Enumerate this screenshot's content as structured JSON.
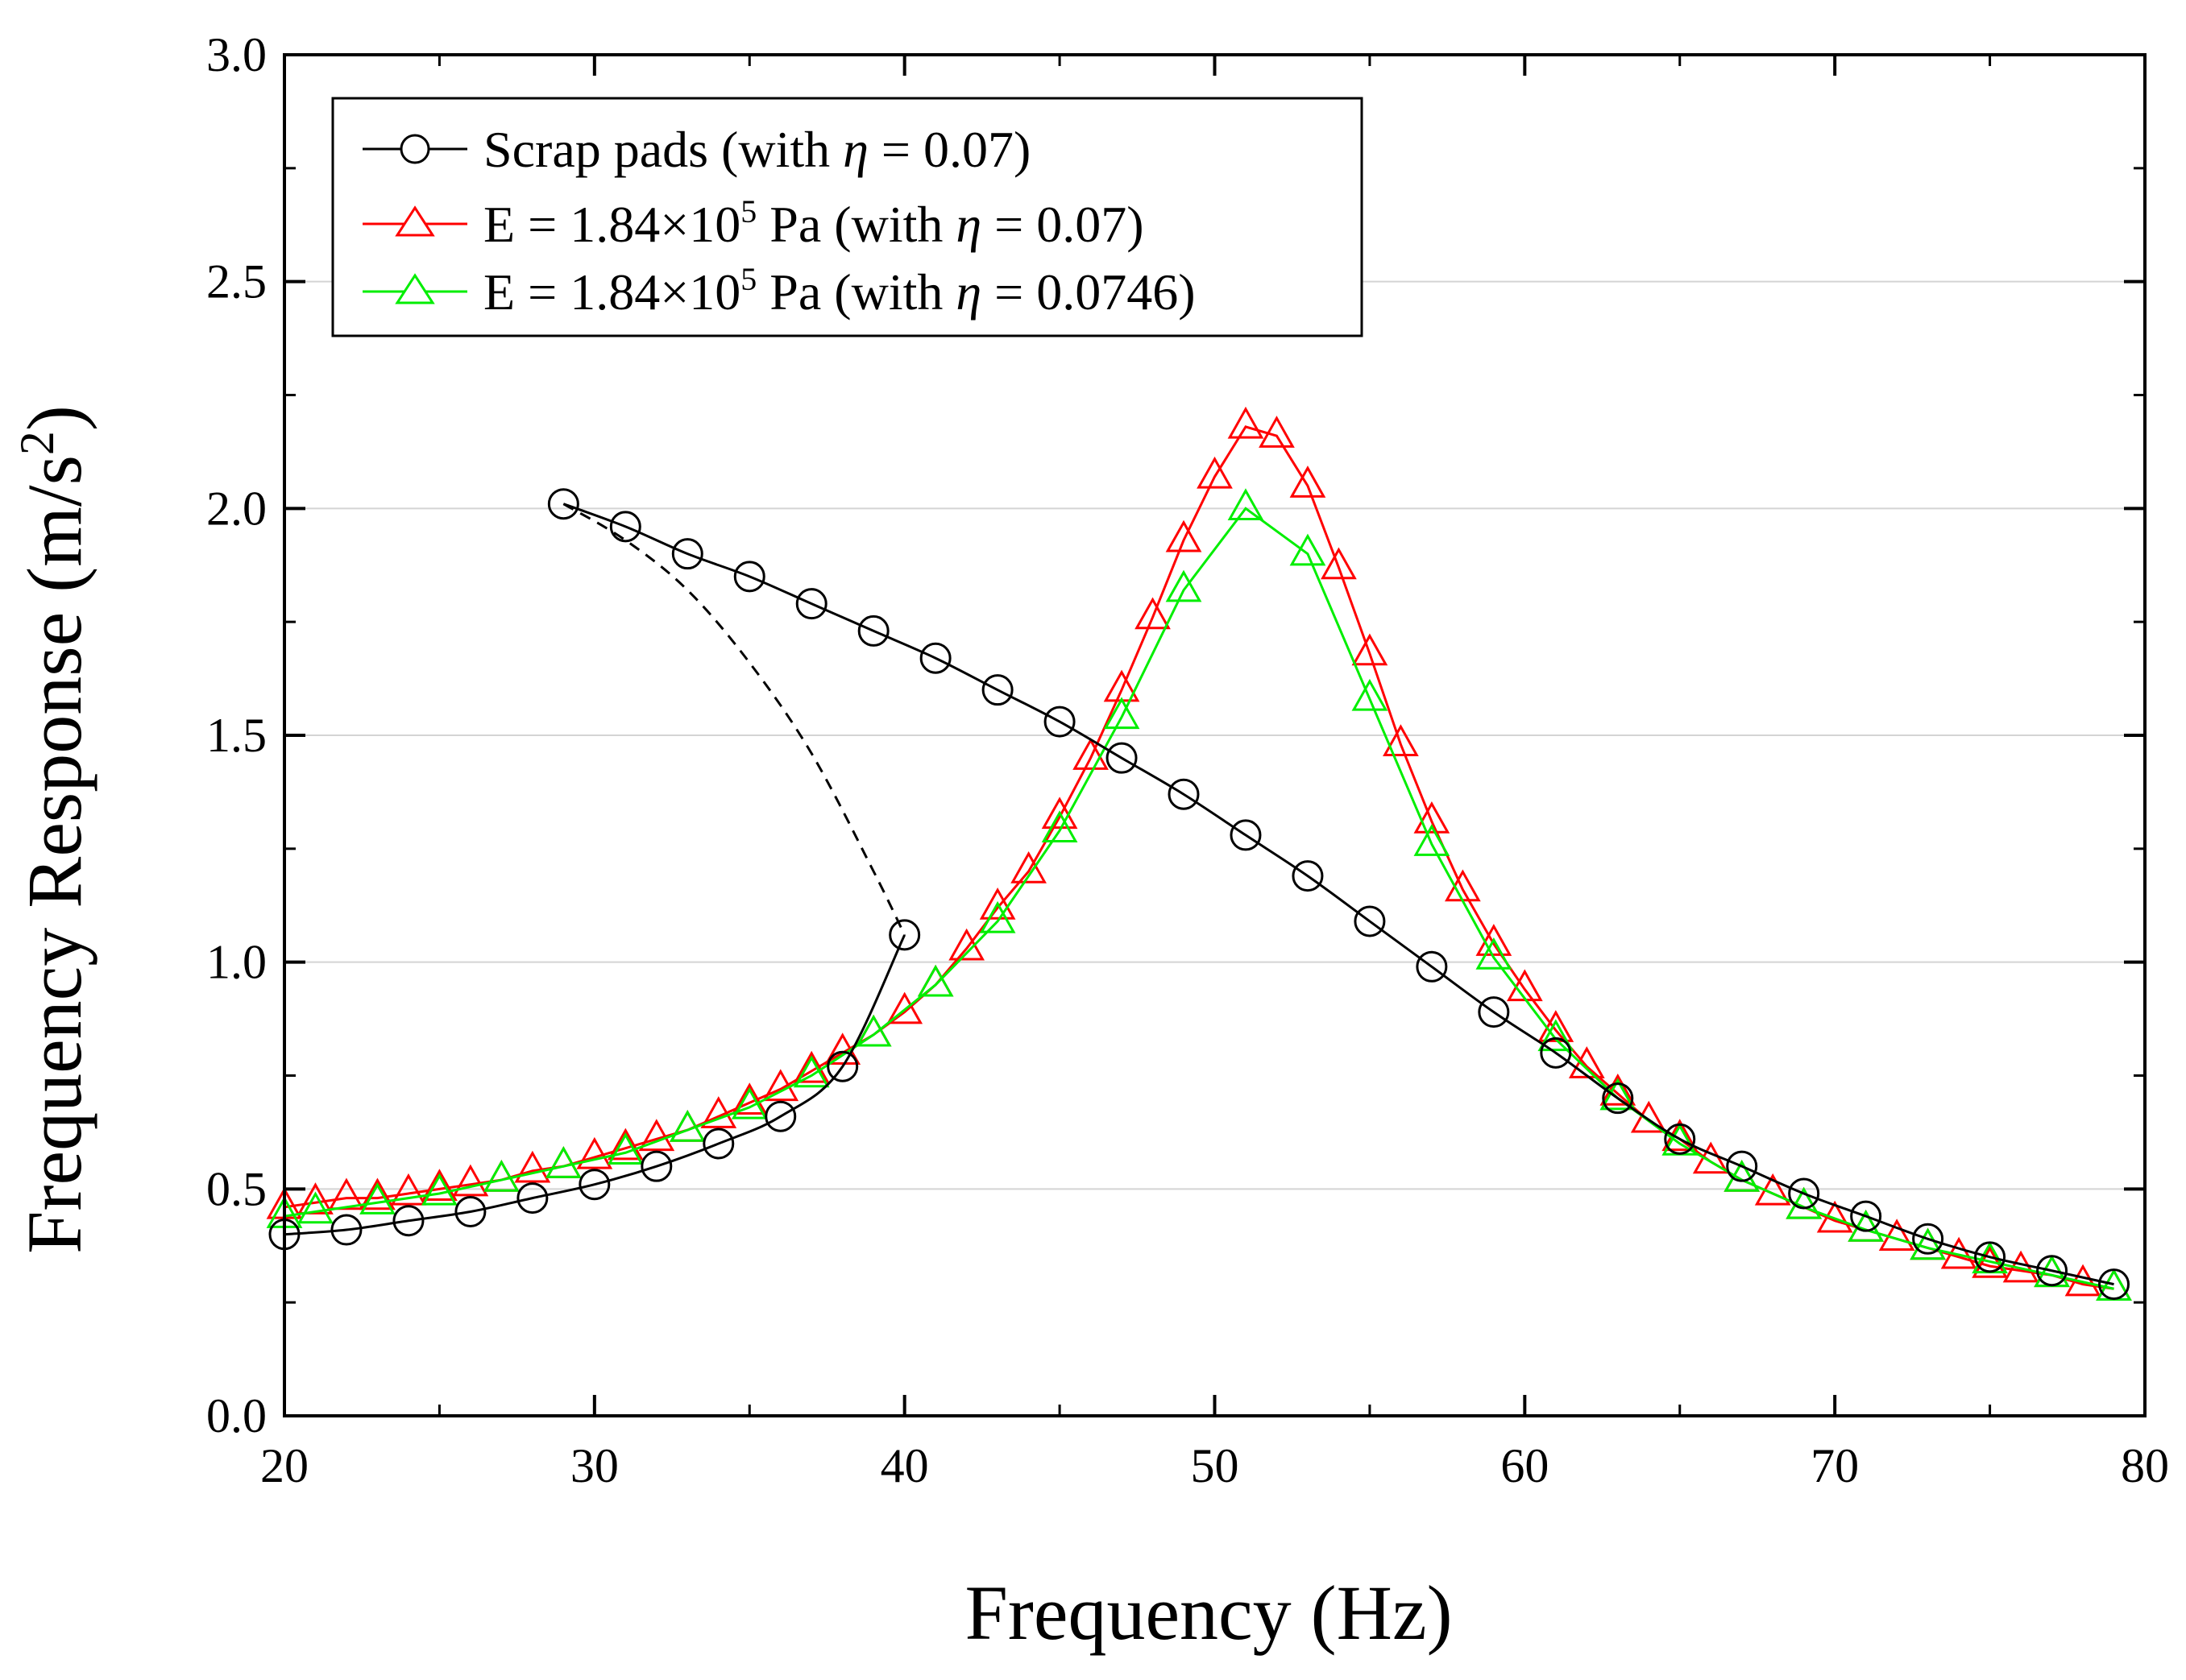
{
  "chart_data": {
    "type": "line",
    "title": "",
    "xlabel": "Frequency (Hz)",
    "ylabel": "Frequency Response (m/s",
    "ylabel_sup": "2",
    "ylabel_close": ")",
    "xlim": [
      20,
      80
    ],
    "ylim": [
      0,
      3.0
    ],
    "x_ticks": [
      20,
      30,
      40,
      50,
      60,
      70,
      80
    ],
    "x_tick_labels": [
      "20",
      "30",
      "40",
      "50",
      "60",
      "70",
      "80"
    ],
    "y_ticks": [
      0,
      0.5,
      1.0,
      1.5,
      2.0,
      2.5,
      3.0
    ],
    "y_tick_labels": [
      "0.0",
      "0.5",
      "1.0",
      "1.5",
      "2.0",
      "2.5",
      "3.0"
    ],
    "grid": true,
    "legend_position": "top-left",
    "series": [
      {
        "name": "Scrap pads (with η = 0.07)",
        "legend_pre": "Scrap pads (with ",
        "legend_eta": "η",
        "legend_post": " = 0.07)",
        "marker": "circle",
        "color": "#000000",
        "lower_branch": {
          "x": [
            20,
            22,
            24,
            26,
            28,
            30,
            32,
            34,
            36,
            38,
            40
          ],
          "y": [
            0.4,
            0.41,
            0.43,
            0.45,
            0.48,
            0.51,
            0.55,
            0.6,
            0.66,
            0.77,
            1.06
          ]
        },
        "upper_branch": {
          "x": [
            29,
            31,
            33,
            35,
            37,
            39,
            41,
            43,
            45,
            47,
            49,
            51,
            53,
            55,
            57,
            59,
            61,
            63,
            65,
            67,
            69,
            71,
            73,
            75,
            77,
            79
          ],
          "y": [
            2.01,
            1.96,
            1.9,
            1.85,
            1.79,
            1.73,
            1.67,
            1.6,
            1.53,
            1.45,
            1.37,
            1.28,
            1.19,
            1.09,
            0.99,
            0.89,
            0.8,
            0.7,
            0.61,
            0.55,
            0.49,
            0.44,
            0.39,
            0.35,
            0.32,
            0.29
          ]
        },
        "unstable_branch": {
          "x": [
            29,
            31,
            33,
            35,
            37,
            39,
            40
          ],
          "y": [
            2.01,
            1.93,
            1.82,
            1.66,
            1.46,
            1.2,
            1.06
          ]
        }
      },
      {
        "name": "E = 1.84×10^5 Pa (with η = 0.07)",
        "legend_pre": "E = 1.84×10",
        "legend_sup": "5",
        "legend_mid": " Pa (with ",
        "legend_eta": "η",
        "legend_post": " = 0.07)",
        "marker": "triangle",
        "color": "#ff0000",
        "x": [
          20,
          21,
          22,
          23,
          24,
          25,
          26,
          27,
          28,
          29,
          30,
          31,
          32,
          33,
          34,
          35,
          36,
          37,
          38,
          39,
          40,
          41,
          42,
          43,
          44,
          45,
          46,
          47,
          48,
          49,
          50,
          51,
          52,
          53,
          54,
          55,
          56,
          57,
          58,
          59,
          60,
          61,
          62,
          63,
          64,
          65,
          66,
          67,
          68,
          69,
          70,
          71,
          72,
          73,
          74,
          75,
          76,
          77,
          78,
          79
        ],
        "y": [
          0.46,
          0.47,
          0.48,
          0.48,
          0.49,
          0.5,
          0.51,
          0.52,
          0.54,
          0.55,
          0.57,
          0.59,
          0.61,
          0.63,
          0.66,
          0.69,
          0.72,
          0.76,
          0.8,
          0.84,
          0.89,
          0.95,
          1.03,
          1.12,
          1.2,
          1.32,
          1.45,
          1.6,
          1.76,
          1.93,
          2.07,
          2.18,
          2.16,
          2.05,
          1.87,
          1.68,
          1.48,
          1.31,
          1.16,
          1.04,
          0.94,
          0.85,
          0.77,
          0.71,
          0.65,
          0.61,
          0.56,
          0.52,
          0.49,
          0.46,
          0.43,
          0.41,
          0.39,
          0.37,
          0.35,
          0.33,
          0.32,
          0.31,
          0.29,
          0.28
        ]
      },
      {
        "name": "E = 1.84×10^5 Pa (with η = 0.0746)",
        "legend_pre": "E = 1.84×10",
        "legend_sup": "5",
        "legend_mid": " Pa (with ",
        "legend_eta": "η",
        "legend_post": " = 0.0746)",
        "marker": "triangle",
        "color": "#00ee00",
        "x": [
          20,
          21,
          23,
          25,
          27,
          29,
          31,
          33,
          35,
          37,
          39,
          41,
          43,
          45,
          47,
          49,
          51,
          53,
          55,
          57,
          59,
          61,
          63,
          65,
          67,
          69,
          71,
          73,
          75,
          77,
          79
        ],
        "y": [
          0.44,
          0.45,
          0.47,
          0.49,
          0.52,
          0.55,
          0.58,
          0.63,
          0.68,
          0.75,
          0.84,
          0.95,
          1.09,
          1.29,
          1.54,
          1.82,
          2.0,
          1.9,
          1.58,
          1.26,
          1.01,
          0.83,
          0.7,
          0.6,
          0.52,
          0.46,
          0.41,
          0.37,
          0.34,
          0.31,
          0.28
        ]
      }
    ]
  }
}
